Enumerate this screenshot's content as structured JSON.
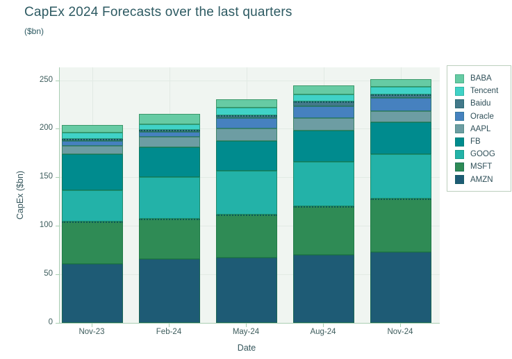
{
  "header": {
    "title": "CapEx 2024 Forecasts over the last quarters",
    "subtitle": "($bn)"
  },
  "chart_data": {
    "type": "bar",
    "stacked": true,
    "title": "CapEx 2024 Forecasts over the last quarters",
    "subtitle": "($bn)",
    "xlabel": "Date",
    "ylabel": "CapEx ($bn)",
    "categories": [
      "Nov-23",
      "Feb-24",
      "May-24",
      "Aug-24",
      "Nov-24"
    ],
    "series": [
      {
        "name": "BABA",
        "color": "#66cba4",
        "outline_dotted": false,
        "values": [
          7.5,
          11,
          9,
          9.5,
          8
        ]
      },
      {
        "name": "Tencent",
        "color": "#40d2c7",
        "outline_dotted": false,
        "values": [
          6.5,
          6,
          7.5,
          7.5,
          8
        ]
      },
      {
        "name": "Baidu",
        "color": "#43798a",
        "outline_dotted": true,
        "values": [
          1.5,
          2,
          3,
          4.5,
          3.5
        ]
      },
      {
        "name": "Oracle",
        "color": "#4681bf",
        "outline_dotted": false,
        "values": [
          5,
          5,
          11,
          12.5,
          13.5
        ]
      },
      {
        "name": "AAPL",
        "color": "#6d9da3",
        "outline_dotted": false,
        "values": [
          8.5,
          10.5,
          12.5,
          12.5,
          11.5
        ]
      },
      {
        "name": "FB",
        "color": "#008b8e",
        "outline_dotted": false,
        "values": [
          37.5,
          31,
          31,
          32.5,
          33
        ]
      },
      {
        "name": "GOOG",
        "color": "#23b2a8",
        "outline_dotted": false,
        "values": [
          32,
          43,
          45,
          45.5,
          46
        ]
      },
      {
        "name": "MSFT",
        "color": "#2f8b55",
        "outline_dotted": true,
        "values": [
          44,
          41.5,
          44.5,
          50.5,
          55
        ]
      },
      {
        "name": "AMZN",
        "color": "#1e5b75",
        "outline_dotted": false,
        "values": [
          60.5,
          65.5,
          67,
          70,
          73
        ]
      }
    ],
    "stack_order": "series listed top-to-bottom of stack; AMZN at bottom",
    "totals": [
      203,
      215.5,
      230.5,
      245,
      251.5
    ],
    "yticks": [
      0,
      50,
      100,
      150,
      200,
      250
    ],
    "ylim": [
      0,
      263
    ],
    "grid": true,
    "legend_position": "right-outside",
    "legend_entries": [
      "BABA",
      "Tencent",
      "Baidu",
      "Oracle",
      "AAPL",
      "FB",
      "GOOG",
      "MSFT",
      "AMZN"
    ]
  },
  "style_colors": {
    "title_text": "#2d5a62",
    "tick_text": "#3d5c5c",
    "plot_background": "#f0f5f1",
    "gridline": "#e2eae4",
    "axis_line": "#a9ceb2",
    "legend_border": "#bccfbd"
  }
}
